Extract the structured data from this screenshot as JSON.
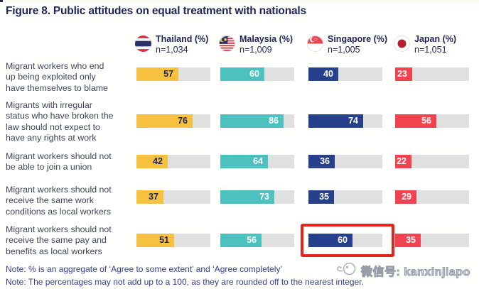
{
  "title": "Figure 8. Public attitudes on equal treatment with nationals",
  "legend": {
    "columns": [
      {
        "label": "Thailand (%)",
        "n": "n=1,034",
        "flag": "thailand-flag-icon",
        "color": "#f6c13e"
      },
      {
        "label": "Malaysia (%)",
        "n": "n=1,009",
        "flag": "malaysia-flag-icon",
        "color": "#4cc1c0"
      },
      {
        "label": "Singapore (%)",
        "n": "n=1,005",
        "flag": "singapore-flag-icon",
        "color": "#27408c"
      },
      {
        "label": "Japan (%)",
        "n": "n=1,051",
        "flag": "japan-flag-icon",
        "color": "#f2414f"
      }
    ]
  },
  "chart_data": {
    "type": "bar",
    "orientation": "horizontal",
    "title": "Figure 8. Public attitudes on equal treatment with nationals",
    "categories": [
      "Migrant workers who end up being exploited only have themselves to blame",
      "Migrants with irregular status who have broken the law should not expect to have any rights at work",
      "Migrant workers should not be able to join a union",
      "Migrant workers should not receive the same work conditions as local workers",
      "Migrant workers should not receive the same pay and benefits as local workers"
    ],
    "category_lines": [
      [
        "Migrant workers who end",
        "up being exploited only",
        "have themselves to blame"
      ],
      [
        "Migrants with irregular",
        "status who have broken the",
        "law should not expect to",
        "have any rights at work"
      ],
      [
        "Migrant workers should not",
        "be able to join a union"
      ],
      [
        "Migrant workers should not",
        "receive the same work",
        "conditions as local workers"
      ],
      [
        "Migrant workers should not",
        "receive the same pay and",
        "benefits as local workers"
      ]
    ],
    "series": [
      {
        "name": "Thailand (%)",
        "sample": "n=1,034",
        "color": "#f6c13e",
        "values": [
          57,
          76,
          42,
          37,
          51
        ]
      },
      {
        "name": "Malaysia (%)",
        "sample": "n=1,009",
        "color": "#4cc1c0",
        "values": [
          60,
          86,
          64,
          73,
          56
        ]
      },
      {
        "name": "Singapore (%)",
        "sample": "n=1,005",
        "color": "#27408c",
        "values": [
          40,
          74,
          36,
          35,
          60
        ]
      },
      {
        "name": "Japan (%)",
        "sample": "n=1,051",
        "color": "#f2414f",
        "values": [
          23,
          56,
          22,
          29,
          35
        ]
      }
    ],
    "xlim": [
      0,
      100
    ],
    "unit": "%",
    "grid": false,
    "legend_position": "top",
    "track_color": "#e0e0e0",
    "annotations": [
      {
        "type": "highlight-box",
        "series": "Singapore (%)",
        "category_index": 4,
        "value": 60,
        "color": "#e8231d"
      }
    ]
  },
  "notes": [
    "Note: % is an aggregate of ‘Agree to some extent’ and ‘Agree completely’",
    "Note: The percentages may not add up to a 100, as they are rounded off to the nearest integer."
  ],
  "watermark": {
    "icon": "bird-doodle-icon",
    "text": "微信号: kanxinjiapo"
  }
}
